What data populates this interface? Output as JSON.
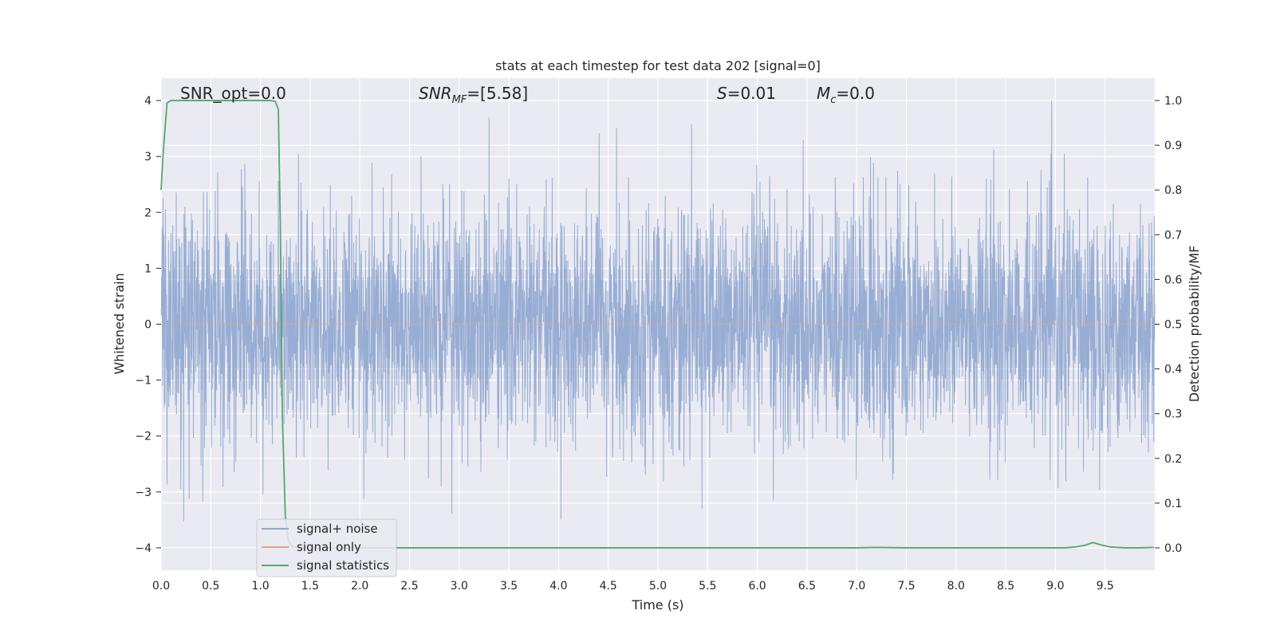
{
  "chart_data": {
    "type": "line",
    "title": "stats at each timestep for test data 202 [signal=0]",
    "xlabel": "Time (s)",
    "ylabel": "Whitened strain",
    "ylabel_right": "Detection probability/MF",
    "xlim": [
      0.0,
      10.0
    ],
    "ylim": [
      -4.4,
      4.4
    ],
    "ylim_right": [
      -0.05,
      1.05
    ],
    "xticks": [
      0.0,
      0.5,
      1.0,
      1.5,
      2.0,
      2.5,
      3.0,
      3.5,
      4.0,
      4.5,
      5.0,
      5.5,
      6.0,
      6.5,
      7.0,
      7.5,
      8.0,
      8.5,
      9.0,
      9.5
    ],
    "xtick_labels": [
      "0.0",
      "0.5",
      "1.0",
      "1.5",
      "2.0",
      "2.5",
      "3.0",
      "3.5",
      "4.0",
      "4.5",
      "5.0",
      "5.5",
      "6.0",
      "6.5",
      "7.0",
      "7.5",
      "8.0",
      "8.5",
      "9.0",
      "9.5"
    ],
    "yticks": [
      -4,
      -3,
      -2,
      -1,
      0,
      1,
      2,
      3,
      4
    ],
    "ytick_labels": [
      "−4",
      "−3",
      "−2",
      "−1",
      "0",
      "1",
      "2",
      "3",
      "4"
    ],
    "yticks_right": [
      0.0,
      0.1,
      0.2,
      0.3,
      0.4,
      0.5,
      0.6,
      0.7,
      0.8,
      0.9,
      1.0
    ],
    "ytick_labels_right": [
      "0.0",
      "0.1",
      "0.2",
      "0.3",
      "0.4",
      "0.5",
      "0.6",
      "0.7",
      "0.8",
      "0.9",
      "1.0"
    ],
    "grid": true,
    "legend_position": "lower-left",
    "annotations": {
      "snr_opt": "SNR_opt=0.0",
      "snr_mf_main": "SNR",
      "snr_mf_sub": "MF",
      "snr_mf_value": "=[5.58]",
      "s_main": "S",
      "s_value": "=0.01",
      "mc_main": "M",
      "mc_sub": "c",
      "mc_value": "=0.0"
    },
    "series": [
      {
        "name": "signal+ noise",
        "color": "#8fa6cf",
        "axis": "left",
        "description": "whitened noise fluctuating between about -4 and 4 over the full 0–10 s range",
        "approx_range": [
          -4.0,
          4.0
        ]
      },
      {
        "name": "signal only",
        "color": "#e6a08a",
        "axis": "left",
        "x": [
          0.0,
          10.0
        ],
        "y": [
          0.0,
          0.0
        ]
      },
      {
        "name": "signal statistics",
        "color": "#55a868",
        "axis": "right",
        "x": [
          0.0,
          0.02,
          0.06,
          0.1,
          0.2,
          0.4,
          0.8,
          1.0,
          1.1,
          1.15,
          1.18,
          1.2,
          1.22,
          1.25,
          1.28,
          1.32,
          1.4,
          1.6,
          2.0,
          3.0,
          4.0,
          5.0,
          6.0,
          7.0,
          7.2,
          7.5,
          8.0,
          8.5,
          9.0,
          9.1,
          9.2,
          9.3,
          9.38,
          9.45,
          9.55,
          9.7,
          9.85,
          9.99
        ],
        "y": [
          0.8,
          0.88,
          0.995,
          1.0,
          1.0,
          1.0,
          1.0,
          1.0,
          1.0,
          0.998,
          0.98,
          0.72,
          0.3,
          0.07,
          0.015,
          0.003,
          0.0,
          0.0,
          0.0,
          0.0,
          0.0,
          0.0,
          0.0,
          0.0,
          0.001,
          0.0,
          0.0,
          0.0,
          0.0,
          0.0,
          0.002,
          0.006,
          0.012,
          0.007,
          0.002,
          0.0,
          0.0,
          0.001
        ]
      }
    ]
  }
}
